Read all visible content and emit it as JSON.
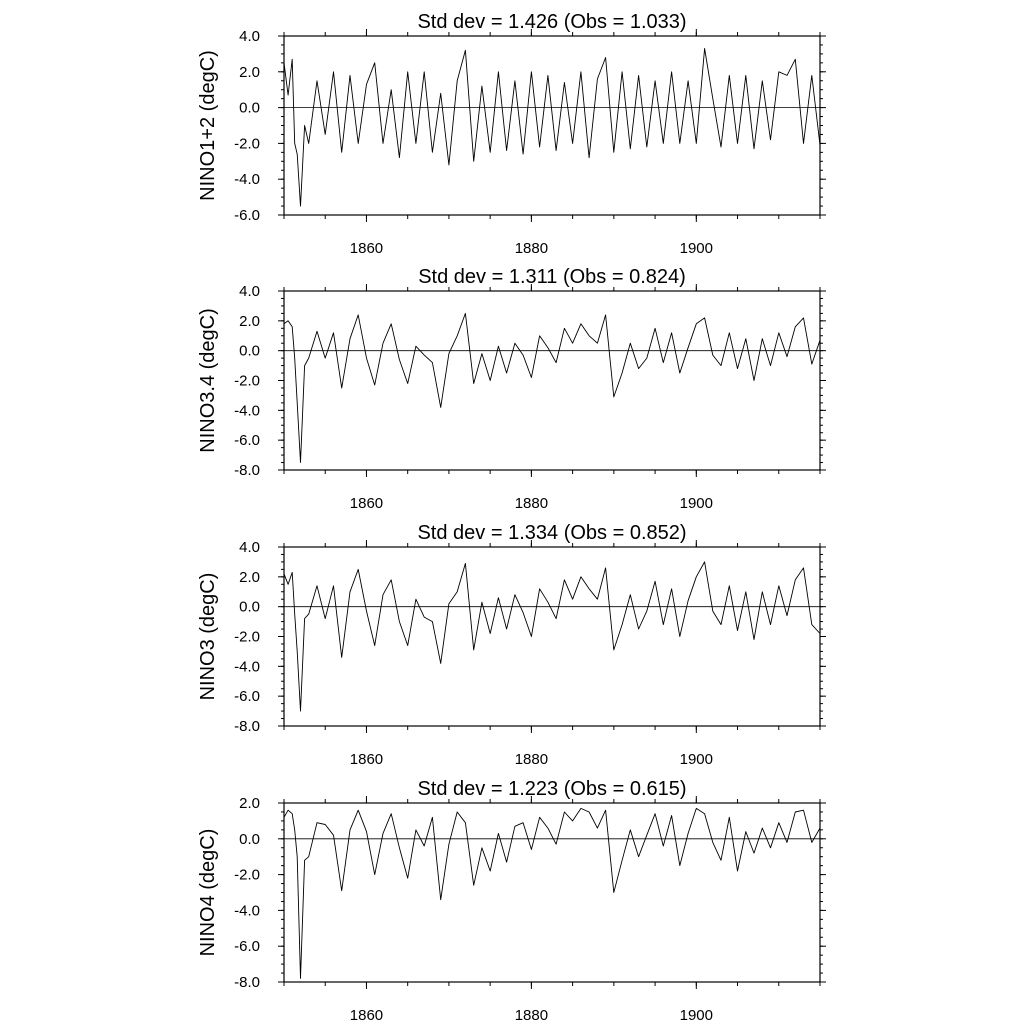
{
  "chart_data": [
    {
      "type": "line",
      "title": "Std dev = 1.426 (Obs = 1.033)",
      "ylabel": "NINO1+2 (degC)",
      "xlim": [
        1850,
        1915
      ],
      "ylim": [
        -6,
        4
      ],
      "xticks": [
        1860,
        1880,
        1900
      ],
      "yticks": [
        -6,
        -4,
        -2,
        0,
        2,
        4
      ],
      "yticklabels": [
        "-6.0",
        "-4.0",
        "-2.0",
        "0.0",
        "2.0",
        "4.0"
      ],
      "xticklabels": [
        "1860",
        "1880",
        "1900"
      ],
      "series": [
        {
          "x": [
            1850,
            1850.5,
            1851,
            1851.3,
            1851.6,
            1852,
            1852.5,
            1853,
            1854,
            1855,
            1856,
            1857,
            1858,
            1859,
            1860,
            1861,
            1862,
            1863,
            1864,
            1865,
            1866,
            1867,
            1868,
            1869,
            1870,
            1871,
            1872,
            1873,
            1874,
            1875,
            1876,
            1877,
            1878,
            1879,
            1880,
            1881,
            1882,
            1883,
            1884,
            1885,
            1886,
            1887,
            1888,
            1889,
            1890,
            1891,
            1892,
            1893,
            1894,
            1895,
            1896,
            1897,
            1898,
            1899,
            1900,
            1901,
            1902,
            1903,
            1904,
            1905,
            1906,
            1907,
            1908,
            1909,
            1910,
            1911,
            1912,
            1913,
            1914,
            1915
          ],
          "y": [
            2.5,
            0.7,
            2.7,
            -2.0,
            -2.6,
            -5.5,
            -1.0,
            -2.0,
            1.5,
            -1.5,
            2.0,
            -2.5,
            1.8,
            -2.0,
            1.3,
            2.5,
            -2.0,
            1.0,
            -2.8,
            2.0,
            -2.0,
            2.0,
            -2.5,
            0.8,
            -3.2,
            1.5,
            3.2,
            -3.0,
            1.2,
            -2.5,
            2.0,
            -2.4,
            1.5,
            -2.6,
            2.0,
            -2.2,
            1.8,
            -2.4,
            1.4,
            -2.0,
            2.0,
            -2.8,
            1.6,
            2.8,
            -2.5,
            2.0,
            -2.3,
            1.8,
            -2.2,
            1.5,
            -2.0,
            2.0,
            -2.0,
            1.5,
            -2.0,
            3.3,
            0.5,
            -2.2,
            1.8,
            -2.0,
            1.8,
            -2.3,
            1.5,
            -1.8,
            2.0,
            1.8,
            2.7,
            -2.0,
            1.8,
            -2.1
          ]
        }
      ]
    },
    {
      "type": "line",
      "title": "Std dev = 1.311 (Obs = 0.824)",
      "ylabel": "NINO3.4 (degC)",
      "xlim": [
        1850,
        1915
      ],
      "ylim": [
        -8,
        4
      ],
      "xticks": [
        1860,
        1880,
        1900
      ],
      "yticks": [
        -8,
        -6,
        -4,
        -2,
        0,
        2,
        4
      ],
      "yticklabels": [
        "-8.0",
        "-6.0",
        "-4.0",
        "-2.0",
        "0.0",
        "2.0",
        "4.0"
      ],
      "xticklabels": [
        "1860",
        "1880",
        "1900"
      ],
      "series": [
        {
          "x": [
            1850,
            1850.5,
            1851,
            1851.3,
            1851.6,
            1852,
            1852.5,
            1853,
            1854,
            1855,
            1856,
            1857,
            1858,
            1859,
            1860,
            1861,
            1862,
            1863,
            1864,
            1865,
            1866,
            1867,
            1868,
            1869,
            1870,
            1871,
            1872,
            1873,
            1874,
            1875,
            1876,
            1877,
            1878,
            1879,
            1880,
            1881,
            1882,
            1883,
            1884,
            1885,
            1886,
            1887,
            1888,
            1889,
            1890,
            1891,
            1892,
            1893,
            1894,
            1895,
            1896,
            1897,
            1898,
            1899,
            1900,
            1901,
            1902,
            1903,
            1904,
            1905,
            1906,
            1907,
            1908,
            1909,
            1910,
            1911,
            1912,
            1913,
            1914,
            1915
          ],
          "y": [
            1.8,
            2.0,
            1.6,
            -0.5,
            -3.5,
            -7.5,
            -1.0,
            -0.5,
            1.3,
            -0.5,
            1.2,
            -2.5,
            0.8,
            2.4,
            -0.5,
            -2.3,
            0.5,
            1.8,
            -0.6,
            -2.2,
            0.3,
            -0.3,
            -0.8,
            -3.8,
            -0.2,
            1.0,
            2.5,
            -2.2,
            -0.2,
            -2.0,
            0.3,
            -1.5,
            0.5,
            -0.3,
            -1.8,
            1.0,
            0.2,
            -0.8,
            1.5,
            0.5,
            1.8,
            1.0,
            0.5,
            2.4,
            -3.1,
            -1.5,
            0.5,
            -1.2,
            -0.5,
            1.5,
            -0.8,
            1.2,
            -1.5,
            0.2,
            1.8,
            2.2,
            -0.3,
            -1.0,
            1.2,
            -1.2,
            0.8,
            -2.0,
            0.8,
            -1.0,
            1.2,
            -0.4,
            1.6,
            2.2,
            -0.9,
            0.7
          ]
        }
      ]
    },
    {
      "type": "line",
      "title": "Std dev = 1.334 (Obs = 0.852)",
      "ylabel": "NINO3 (degC)",
      "xlim": [
        1850,
        1915
      ],
      "ylim": [
        -8,
        4
      ],
      "xticks": [
        1860,
        1880,
        1900
      ],
      "yticks": [
        -8,
        -6,
        -4,
        -2,
        0,
        2,
        4
      ],
      "yticklabels": [
        "-8.0",
        "-6.0",
        "-4.0",
        "-2.0",
        "0.0",
        "2.0",
        "4.0"
      ],
      "xticklabels": [
        "1860",
        "1880",
        "1900"
      ],
      "series": [
        {
          "x": [
            1850,
            1850.5,
            1851,
            1851.3,
            1851.6,
            1852,
            1852.5,
            1853,
            1854,
            1855,
            1856,
            1857,
            1858,
            1859,
            1860,
            1861,
            1862,
            1863,
            1864,
            1865,
            1866,
            1867,
            1868,
            1869,
            1870,
            1871,
            1872,
            1873,
            1874,
            1875,
            1876,
            1877,
            1878,
            1879,
            1880,
            1881,
            1882,
            1883,
            1884,
            1885,
            1886,
            1887,
            1888,
            1889,
            1890,
            1891,
            1892,
            1893,
            1894,
            1895,
            1896,
            1897,
            1898,
            1899,
            1900,
            1901,
            1902,
            1903,
            1904,
            1905,
            1906,
            1907,
            1908,
            1909,
            1910,
            1911,
            1912,
            1913,
            1914,
            1915
          ],
          "y": [
            2.2,
            1.5,
            2.3,
            -0.5,
            -3.0,
            -7.0,
            -0.8,
            -0.5,
            1.4,
            -0.8,
            1.4,
            -3.4,
            1.0,
            2.5,
            -0.3,
            -2.6,
            0.8,
            1.8,
            -1.0,
            -2.6,
            0.5,
            -0.7,
            -1.0,
            -3.8,
            0.2,
            1.0,
            2.9,
            -2.9,
            0.3,
            -1.8,
            0.6,
            -1.5,
            0.8,
            -0.4,
            -2.0,
            1.2,
            0.3,
            -0.8,
            1.8,
            0.5,
            2.0,
            1.2,
            0.5,
            2.6,
            -2.9,
            -1.2,
            0.8,
            -1.5,
            -0.3,
            1.7,
            -1.2,
            1.2,
            -2.0,
            0.4,
            2.0,
            3.0,
            -0.3,
            -1.2,
            1.4,
            -1.6,
            1.0,
            -2.2,
            1.0,
            -1.2,
            1.4,
            -0.6,
            1.8,
            2.6,
            -1.2,
            -1.8
          ]
        }
      ]
    },
    {
      "type": "line",
      "title": "Std dev = 1.223 (Obs = 0.615)",
      "ylabel": "NINO4 (degC)",
      "xlim": [
        1850,
        1915
      ],
      "ylim": [
        -8,
        2
      ],
      "xticks": [
        1860,
        1880,
        1900
      ],
      "yticks": [
        -8,
        -6,
        -4,
        -2,
        0,
        2
      ],
      "yticklabels": [
        "-8.0",
        "-6.0",
        "-4.0",
        "-2.0",
        "0.0",
        "2.0"
      ],
      "xticklabels": [
        "1860",
        "1880",
        "1900"
      ],
      "series": [
        {
          "x": [
            1850,
            1850.5,
            1851,
            1851.3,
            1851.6,
            1852,
            1852.5,
            1853,
            1854,
            1855,
            1856,
            1857,
            1858,
            1859,
            1860,
            1861,
            1862,
            1863,
            1864,
            1865,
            1866,
            1867,
            1868,
            1869,
            1870,
            1871,
            1872,
            1873,
            1874,
            1875,
            1876,
            1877,
            1878,
            1879,
            1880,
            1881,
            1882,
            1883,
            1884,
            1885,
            1886,
            1887,
            1888,
            1889,
            1890,
            1891,
            1892,
            1893,
            1894,
            1895,
            1896,
            1897,
            1898,
            1899,
            1900,
            1901,
            1902,
            1903,
            1904,
            1905,
            1906,
            1907,
            1908,
            1909,
            1910,
            1911,
            1912,
            1913,
            1914,
            1915
          ],
          "y": [
            1.2,
            1.6,
            1.4,
            0.5,
            -1.0,
            -7.8,
            -1.2,
            -1.0,
            0.9,
            0.8,
            0.2,
            -2.9,
            0.5,
            1.6,
            0.4,
            -2.0,
            0.3,
            1.4,
            -0.5,
            -2.2,
            0.5,
            -0.4,
            1.2,
            -3.4,
            -0.3,
            1.5,
            0.9,
            -2.6,
            -0.5,
            -1.8,
            0.3,
            -1.3,
            0.7,
            0.9,
            -0.6,
            1.2,
            0.6,
            -0.3,
            1.5,
            1.0,
            1.7,
            1.5,
            0.6,
            1.6,
            -3.0,
            -1.2,
            0.5,
            -1.0,
            0.2,
            1.4,
            -0.4,
            1.3,
            -1.5,
            0.3,
            1.7,
            1.4,
            -0.2,
            -1.2,
            1.2,
            -1.8,
            0.4,
            -0.8,
            0.6,
            -0.5,
            0.9,
            -0.2,
            1.5,
            1.6,
            -0.2,
            0.6
          ]
        }
      ]
    }
  ]
}
